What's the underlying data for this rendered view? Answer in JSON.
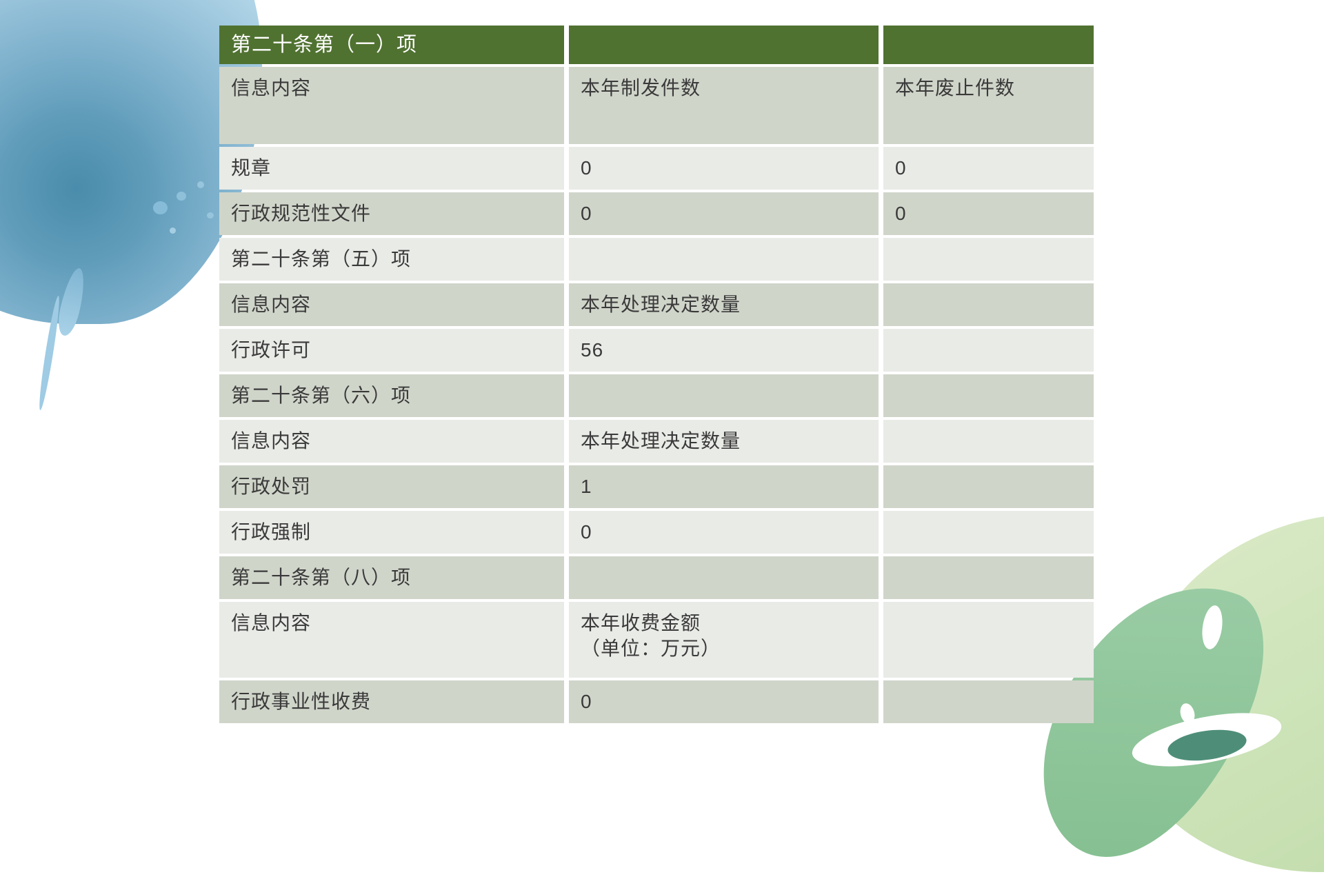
{
  "page": {
    "background_color": "#ffffff"
  },
  "colors": {
    "header_green": "#507231",
    "band_dark": "#d0d5ca",
    "band_light": "#e9ebe7",
    "header_text": "#ffffff",
    "body_text": "#3a3a3a",
    "splash_blue": "#4a8cab",
    "splash_pink": "#f8ced6",
    "splash_green_pale": "#cbe2b6",
    "splash_green_medium": "#8cc49a",
    "splash_green_dark": "#4e8e78"
  },
  "table": {
    "rows": [
      {
        "cells": [
          "第二十条第（一）项",
          "",
          ""
        ]
      },
      {
        "cells": [
          "信息内容",
          "本年制发件数",
          "本年废止件数"
        ]
      },
      {
        "cells": [
          "规章",
          "0",
          "0"
        ]
      },
      {
        "cells": [
          "行政规范性文件",
          "0",
          "0"
        ]
      },
      {
        "cells": [
          "第二十条第（五）项",
          "",
          ""
        ]
      },
      {
        "cells": [
          "信息内容",
          "本年处理决定数量",
          ""
        ]
      },
      {
        "cells": [
          "行政许可",
          "56",
          ""
        ]
      },
      {
        "cells": [
          "第二十条第（六）项",
          "",
          ""
        ]
      },
      {
        "cells": [
          "信息内容",
          "本年处理决定数量",
          ""
        ]
      },
      {
        "cells": [
          "行政处罚",
          "1",
          ""
        ]
      },
      {
        "cells": [
          "行政强制",
          "0",
          ""
        ]
      },
      {
        "cells": [
          "第二十条第（八）项",
          "",
          ""
        ]
      },
      {
        "cells": [
          "信息内容",
          "本年收费金额\n（单位：万元）",
          ""
        ]
      },
      {
        "cells": [
          "行政事业性收费",
          "0",
          ""
        ]
      }
    ]
  }
}
